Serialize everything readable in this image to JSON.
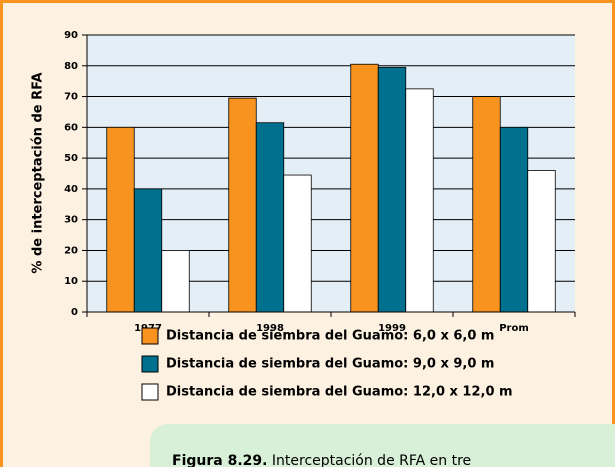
{
  "chart_data": {
    "type": "bar",
    "ylabel": "% de interceptación de RFA",
    "categories": [
      "1977",
      "1998",
      "1999",
      "Prom"
    ],
    "series": [
      {
        "name": "Distancia de siembra del Guamo: 6,0 x 6,0 m",
        "color": "#f7931e",
        "values": [
          60,
          69.5,
          80.5,
          70
        ]
      },
      {
        "name": "Distancia de siembra del Guamo: 9,0 x 9,0 m",
        "color": "#00708f",
        "values": [
          40,
          61.5,
          79.5,
          60
        ]
      },
      {
        "name": "Distancia de siembra del Guamo: 12,0 x 12,0 m",
        "color": "#ffffff",
        "values": [
          20,
          44.5,
          72.5,
          46
        ]
      }
    ],
    "ylim": [
      0,
      90
    ],
    "yticks": [
      0,
      10,
      20,
      30,
      40,
      50,
      60,
      70,
      80,
      90
    ],
    "grid": true,
    "caption": {
      "label": "Figura 8.29.",
      "text": "Interceptación de RFA en tre"
    }
  }
}
